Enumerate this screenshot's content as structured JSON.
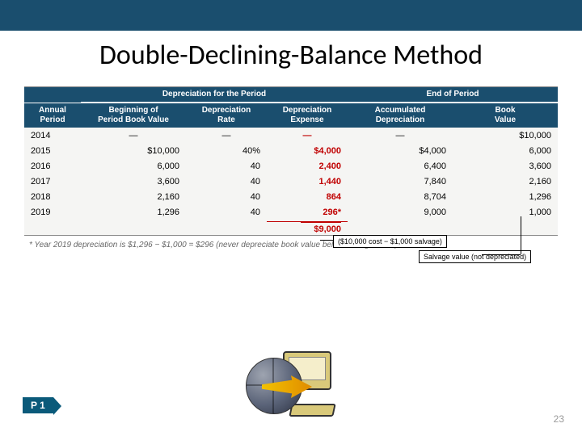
{
  "colors": {
    "header_bar": "#1a4e6e",
    "table_bg": "#f5f5f3",
    "expense_text": "#c00000",
    "title_text": "#000000",
    "page_num": "#999999"
  },
  "title": "Double-Declining-Balance Method",
  "header": {
    "group_dep": "Depreciation for the Period",
    "group_end": "End of Period",
    "period": "Annual\nPeriod",
    "bbv": "Beginning of\nPeriod Book Value",
    "rate": "Depreciation\nRate",
    "exp": "Depreciation\nExpense",
    "acc": "Accumulated\nDepreciation",
    "bv": "Book\nValue"
  },
  "rows": [
    {
      "period": "2014",
      "bbv": "—",
      "rate": "—",
      "exp": "—",
      "acc": "—",
      "bv": "$10,000"
    },
    {
      "period": "2015",
      "bbv": "$10,000",
      "rate": "40%",
      "exp": "$4,000",
      "acc": "$4,000",
      "bv": "6,000"
    },
    {
      "period": "2016",
      "bbv": "6,000",
      "rate": "40",
      "exp": "2,400",
      "acc": "6,400",
      "bv": "3,600"
    },
    {
      "period": "2017",
      "bbv": "3,600",
      "rate": "40",
      "exp": "1,440",
      "acc": "7,840",
      "bv": "2,160"
    },
    {
      "period": "2018",
      "bbv": "2,160",
      "rate": "40",
      "exp": "864",
      "acc": "8,704",
      "bv": "1,296"
    },
    {
      "period": "2019",
      "bbv": "1,296",
      "rate": "40",
      "exp": "296*",
      "acc": "9,000",
      "bv": "1,000"
    }
  ],
  "total_exp": "$9,000",
  "footnote": "* Year 2019 depreciation is $1,296 − $1,000 = $296 (never depreciate book value below salvage value).",
  "callout_cost": "($10,000 cost − $1,000 salvage)",
  "callout_salvage": "Salvage value (not depreciated)",
  "p1": "P 1",
  "page_number": "23"
}
